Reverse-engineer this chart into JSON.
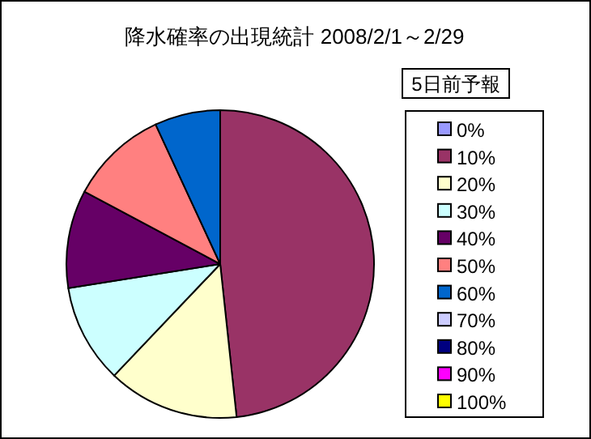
{
  "chart_data": {
    "type": "pie",
    "title": "降水確率の出現統計  2008/2/1～2/29",
    "legend_title": "5日前予報",
    "legend": "right",
    "categories": [
      "0%",
      "10%",
      "20%",
      "30%",
      "40%",
      "50%",
      "60%",
      "70%",
      "80%",
      "90%",
      "100%"
    ],
    "values": [
      0,
      48.3,
      13.8,
      10.4,
      10.3,
      10.3,
      6.9,
      0,
      0,
      0,
      0
    ],
    "colors": [
      "#9999ff",
      "#993366",
      "#ffffcc",
      "#ccffff",
      "#660066",
      "#ff8080",
      "#0066cc",
      "#ccccff",
      "#000080",
      "#ff00ff",
      "#ffff00"
    ]
  }
}
